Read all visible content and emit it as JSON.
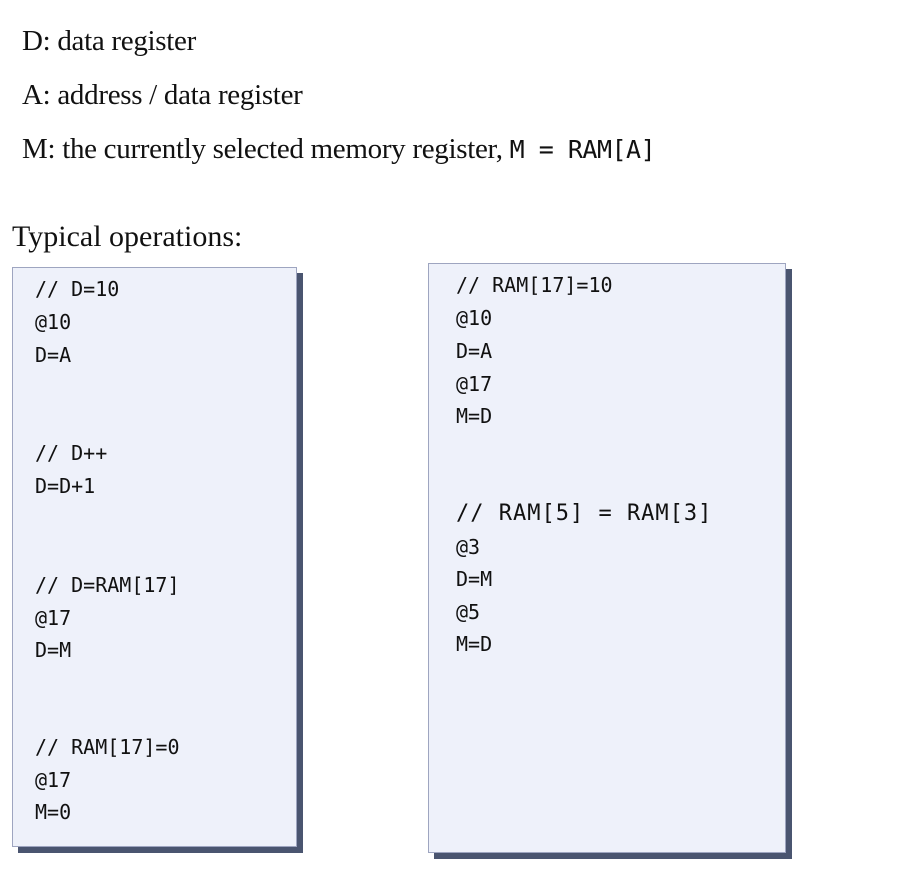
{
  "definitions": [
    {
      "label": "D:",
      "text": "data register"
    },
    {
      "label": "A:",
      "text": "address / data register"
    },
    {
      "label": "M:",
      "text": "the currently selected memory register,",
      "formula": "M = RAM[A]"
    }
  ],
  "heading": "Typical operations:",
  "left_box": {
    "blocks": [
      {
        "comment": "// D=10",
        "lines": [
          "@10",
          "D=A"
        ]
      },
      {
        "comment": "// D++",
        "lines": [
          "D=D+1"
        ]
      },
      {
        "comment": "// D=RAM[17]",
        "lines": [
          "@17",
          "D=M"
        ]
      },
      {
        "comment": "// RAM[17]=0",
        "lines": [
          "@17",
          "M=0"
        ]
      }
    ]
  },
  "right_box": {
    "blocks": [
      {
        "comment": "// RAM[17]=10",
        "lines": [
          "@10",
          "D=A",
          "@17",
          "M=D"
        ]
      },
      {
        "comment": "// RAM[5] = RAM[3]",
        "lines": [
          "@3",
          "D=M",
          "@5",
          "M=D"
        ]
      }
    ]
  }
}
